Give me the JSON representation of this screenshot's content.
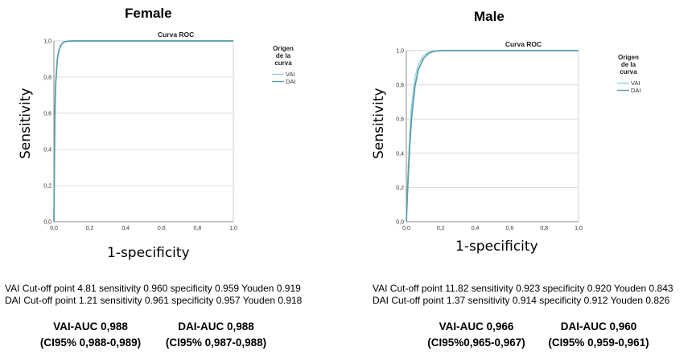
{
  "chart_data": [
    {
      "type": "line",
      "panel_title": "Female",
      "title": "Curva ROC",
      "xlabel": "1-specificity",
      "ylabel": "Sensitivity",
      "xlim": [
        0,
        1
      ],
      "ylim": [
        0,
        1
      ],
      "x_ticks": [
        "0,0",
        "0,2",
        "0,4",
        "0,6",
        "0,8",
        "1,0"
      ],
      "y_ticks": [
        "0,0",
        "0,2",
        "0,4",
        "0,6",
        "0,8",
        "1,0"
      ],
      "grid": "horizontal",
      "legend": {
        "title_lines": [
          "Origen",
          "de la",
          "curva"
        ],
        "placement": "right"
      },
      "series": [
        {
          "name": "VAI",
          "color": "#8fd3e3",
          "x": [
            0,
            0.005,
            0.01,
            0.02,
            0.03,
            0.04,
            0.05,
            0.06,
            0.08,
            0.1,
            1
          ],
          "y": [
            0,
            0.55,
            0.75,
            0.9,
            0.95,
            0.975,
            0.988,
            0.995,
            0.999,
            1,
            1
          ]
        },
        {
          "name": "DAI",
          "color": "#5a9ea8",
          "x": [
            0,
            0.005,
            0.01,
            0.02,
            0.03,
            0.04,
            0.05,
            0.06,
            0.08,
            0.1,
            1
          ],
          "y": [
            0,
            0.57,
            0.77,
            0.91,
            0.955,
            0.978,
            0.99,
            0.996,
            0.999,
            1,
            1
          ]
        }
      ]
    },
    {
      "type": "line",
      "panel_title": "Male",
      "title": "Curva ROC",
      "xlabel": "1-specificity",
      "ylabel": "Sensitivity",
      "xlim": [
        0,
        1
      ],
      "ylim": [
        0,
        1
      ],
      "x_ticks": [
        "0,0",
        "0,2",
        "0,4",
        "0,6",
        "0,8",
        "1,0"
      ],
      "y_ticks": [
        "0,0",
        "0,2",
        "0,4",
        "0,6",
        "0,8",
        "1,0"
      ],
      "grid": "horizontal",
      "legend": {
        "title_lines": [
          "Origen",
          "de la",
          "curva"
        ],
        "placement": "right"
      },
      "series": [
        {
          "name": "VAI",
          "color": "#8fd3e3",
          "x": [
            0,
            0.01,
            0.02,
            0.03,
            0.05,
            0.07,
            0.1,
            0.13,
            0.16,
            0.2,
            1
          ],
          "y": [
            0,
            0.3,
            0.52,
            0.67,
            0.84,
            0.92,
            0.97,
            0.99,
            0.998,
            1,
            1
          ]
        },
        {
          "name": "DAI",
          "color": "#5a9ea8",
          "x": [
            0,
            0.01,
            0.02,
            0.03,
            0.05,
            0.07,
            0.1,
            0.13,
            0.16,
            0.2,
            1
          ],
          "y": [
            0,
            0.24,
            0.44,
            0.6,
            0.79,
            0.89,
            0.955,
            0.985,
            0.996,
            1,
            1
          ]
        }
      ]
    }
  ],
  "female": {
    "vai_stats": "VAI Cut-off point 4.81 sensitivity 0.960 specificity 0.959 Youden 0.919",
    "dai_stats": "DAI Cut-off point 1.21 sensitivity 0.961 specificity 0.957 Youden 0.918",
    "vai_auc": "VAI-AUC 0,988",
    "vai_ci": "(CI95% 0,988-0,989)",
    "dai_auc": "DAI-AUC 0,988",
    "dai_ci": "(CI95% 0,987-0,988)"
  },
  "male": {
    "vai_stats": "VAI Cut-off point 11.82 sensitivity 0.923 specificity 0.920 Youden 0.843",
    "dai_stats": "DAI Cut-off point 1.37 sensitivity 0.914 specificity 0.912 Youden 0.826",
    "vai_auc": "VAI-AUC 0,966",
    "vai_ci": "(CI95%0,965-0,967)",
    "dai_auc": "DAI-AUC 0,960",
    "dai_ci": "(CI95% 0,959-0,961)"
  }
}
